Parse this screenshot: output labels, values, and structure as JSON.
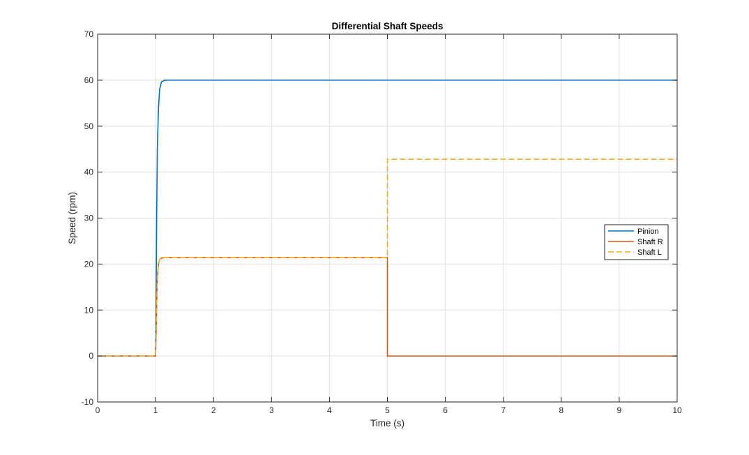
{
  "chart_data": {
    "type": "line",
    "title": "Differential Shaft Speeds",
    "xlabel": "Time (s)",
    "ylabel": "Speed (rpm)",
    "xlim": [
      0,
      10
    ],
    "ylim": [
      -10,
      70
    ],
    "xticks": [
      0,
      1,
      2,
      3,
      4,
      5,
      6,
      7,
      8,
      9,
      10
    ],
    "yticks": [
      -10,
      0,
      10,
      20,
      30,
      40,
      50,
      60,
      70
    ],
    "grid": true,
    "legend_position": "right",
    "series": [
      {
        "name": "Pinion",
        "color": "#0072BD",
        "style": "solid",
        "x": [
          0,
          1,
          1.01,
          1.02,
          1.03,
          1.05,
          1.07,
          1.1,
          1.15,
          1.2,
          2,
          3,
          4,
          5,
          6,
          7,
          8,
          9,
          10
        ],
        "y": [
          0,
          0,
          15,
          32,
          45,
          54,
          58,
          59.6,
          59.95,
          60,
          60,
          60,
          60,
          60,
          60,
          60,
          60,
          60,
          60
        ]
      },
      {
        "name": "Shaft R",
        "color": "#D95319",
        "style": "solid",
        "x": [
          0,
          1,
          1.01,
          1.02,
          1.03,
          1.05,
          1.07,
          1.1,
          1.15,
          1.2,
          2,
          3,
          4,
          5,
          5.0,
          6,
          7,
          8,
          9,
          10
        ],
        "y": [
          0,
          0,
          5,
          12,
          17,
          20,
          21,
          21.3,
          21.4,
          21.4,
          21.4,
          21.4,
          21.4,
          21.4,
          0,
          0,
          0,
          0,
          0,
          0
        ]
      },
      {
        "name": "Shaft L",
        "color": "#EDB120",
        "style": "dashed",
        "x": [
          0,
          1,
          1.01,
          1.02,
          1.03,
          1.05,
          1.07,
          1.1,
          1.15,
          1.2,
          2,
          3,
          4,
          5,
          5.0,
          6,
          7,
          8,
          9,
          10
        ],
        "y": [
          0,
          0,
          5,
          12,
          17,
          20,
          21,
          21.3,
          21.4,
          21.4,
          21.4,
          21.4,
          21.4,
          21.4,
          42.8,
          42.8,
          42.8,
          42.8,
          42.8,
          42.8
        ]
      }
    ]
  }
}
